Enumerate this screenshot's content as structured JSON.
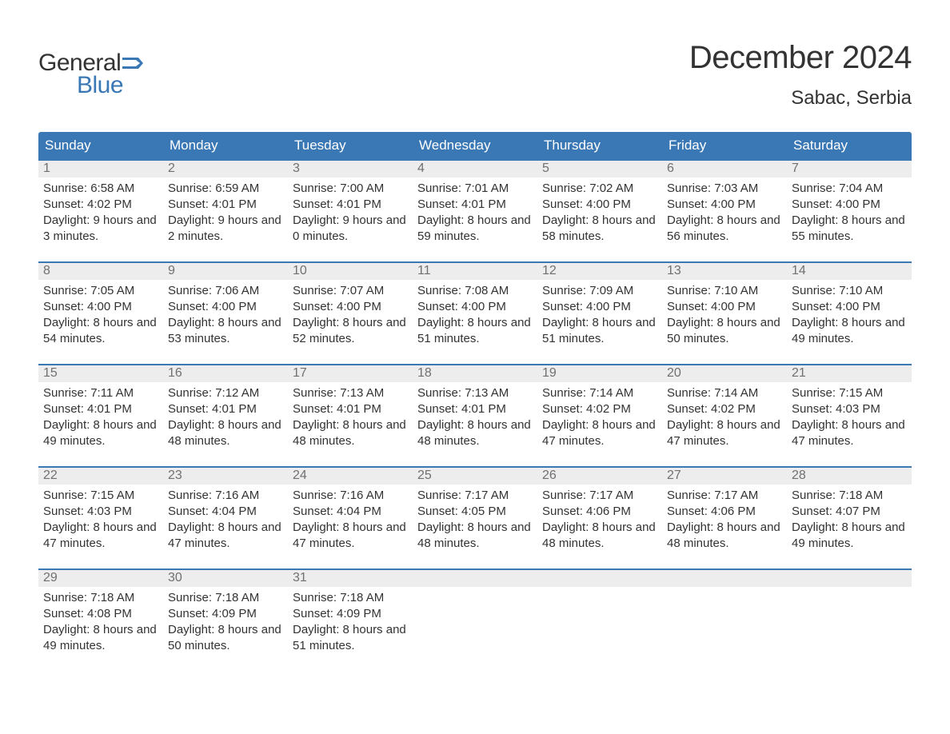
{
  "logo": {
    "line1": "General",
    "line2": "Blue"
  },
  "title": "December 2024",
  "location": "Sabac, Serbia",
  "colors": {
    "header_bg": "#3a78b5",
    "header_text": "#ffffff",
    "daynum_bg": "#ededed",
    "daynum_text": "#707070",
    "body_text": "#333333",
    "week_border": "#3a78b5",
    "background": "#ffffff",
    "logo_accent": "#3a78b5"
  },
  "typography": {
    "title_fontsize": 40,
    "location_fontsize": 24,
    "weekday_fontsize": 17,
    "daynum_fontsize": 16,
    "content_fontsize": 15,
    "logo_fontsize": 30,
    "font_family": "Arial"
  },
  "layout": {
    "columns": 7,
    "rows": 5,
    "cell_min_height": 122
  },
  "weekdays": [
    "Sunday",
    "Monday",
    "Tuesday",
    "Wednesday",
    "Thursday",
    "Friday",
    "Saturday"
  ],
  "weeks": [
    [
      {
        "num": "1",
        "sunrise": "Sunrise: 6:58 AM",
        "sunset": "Sunset: 4:02 PM",
        "daylight": "Daylight: 9 hours and 3 minutes."
      },
      {
        "num": "2",
        "sunrise": "Sunrise: 6:59 AM",
        "sunset": "Sunset: 4:01 PM",
        "daylight": "Daylight: 9 hours and 2 minutes."
      },
      {
        "num": "3",
        "sunrise": "Sunrise: 7:00 AM",
        "sunset": "Sunset: 4:01 PM",
        "daylight": "Daylight: 9 hours and 0 minutes."
      },
      {
        "num": "4",
        "sunrise": "Sunrise: 7:01 AM",
        "sunset": "Sunset: 4:01 PM",
        "daylight": "Daylight: 8 hours and 59 minutes."
      },
      {
        "num": "5",
        "sunrise": "Sunrise: 7:02 AM",
        "sunset": "Sunset: 4:00 PM",
        "daylight": "Daylight: 8 hours and 58 minutes."
      },
      {
        "num": "6",
        "sunrise": "Sunrise: 7:03 AM",
        "sunset": "Sunset: 4:00 PM",
        "daylight": "Daylight: 8 hours and 56 minutes."
      },
      {
        "num": "7",
        "sunrise": "Sunrise: 7:04 AM",
        "sunset": "Sunset: 4:00 PM",
        "daylight": "Daylight: 8 hours and 55 minutes."
      }
    ],
    [
      {
        "num": "8",
        "sunrise": "Sunrise: 7:05 AM",
        "sunset": "Sunset: 4:00 PM",
        "daylight": "Daylight: 8 hours and 54 minutes."
      },
      {
        "num": "9",
        "sunrise": "Sunrise: 7:06 AM",
        "sunset": "Sunset: 4:00 PM",
        "daylight": "Daylight: 8 hours and 53 minutes."
      },
      {
        "num": "10",
        "sunrise": "Sunrise: 7:07 AM",
        "sunset": "Sunset: 4:00 PM",
        "daylight": "Daylight: 8 hours and 52 minutes."
      },
      {
        "num": "11",
        "sunrise": "Sunrise: 7:08 AM",
        "sunset": "Sunset: 4:00 PM",
        "daylight": "Daylight: 8 hours and 51 minutes."
      },
      {
        "num": "12",
        "sunrise": "Sunrise: 7:09 AM",
        "sunset": "Sunset: 4:00 PM",
        "daylight": "Daylight: 8 hours and 51 minutes."
      },
      {
        "num": "13",
        "sunrise": "Sunrise: 7:10 AM",
        "sunset": "Sunset: 4:00 PM",
        "daylight": "Daylight: 8 hours and 50 minutes."
      },
      {
        "num": "14",
        "sunrise": "Sunrise: 7:10 AM",
        "sunset": "Sunset: 4:00 PM",
        "daylight": "Daylight: 8 hours and 49 minutes."
      }
    ],
    [
      {
        "num": "15",
        "sunrise": "Sunrise: 7:11 AM",
        "sunset": "Sunset: 4:01 PM",
        "daylight": "Daylight: 8 hours and 49 minutes."
      },
      {
        "num": "16",
        "sunrise": "Sunrise: 7:12 AM",
        "sunset": "Sunset: 4:01 PM",
        "daylight": "Daylight: 8 hours and 48 minutes."
      },
      {
        "num": "17",
        "sunrise": "Sunrise: 7:13 AM",
        "sunset": "Sunset: 4:01 PM",
        "daylight": "Daylight: 8 hours and 48 minutes."
      },
      {
        "num": "18",
        "sunrise": "Sunrise: 7:13 AM",
        "sunset": "Sunset: 4:01 PM",
        "daylight": "Daylight: 8 hours and 48 minutes."
      },
      {
        "num": "19",
        "sunrise": "Sunrise: 7:14 AM",
        "sunset": "Sunset: 4:02 PM",
        "daylight": "Daylight: 8 hours and 47 minutes."
      },
      {
        "num": "20",
        "sunrise": "Sunrise: 7:14 AM",
        "sunset": "Sunset: 4:02 PM",
        "daylight": "Daylight: 8 hours and 47 minutes."
      },
      {
        "num": "21",
        "sunrise": "Sunrise: 7:15 AM",
        "sunset": "Sunset: 4:03 PM",
        "daylight": "Daylight: 8 hours and 47 minutes."
      }
    ],
    [
      {
        "num": "22",
        "sunrise": "Sunrise: 7:15 AM",
        "sunset": "Sunset: 4:03 PM",
        "daylight": "Daylight: 8 hours and 47 minutes."
      },
      {
        "num": "23",
        "sunrise": "Sunrise: 7:16 AM",
        "sunset": "Sunset: 4:04 PM",
        "daylight": "Daylight: 8 hours and 47 minutes."
      },
      {
        "num": "24",
        "sunrise": "Sunrise: 7:16 AM",
        "sunset": "Sunset: 4:04 PM",
        "daylight": "Daylight: 8 hours and 47 minutes."
      },
      {
        "num": "25",
        "sunrise": "Sunrise: 7:17 AM",
        "sunset": "Sunset: 4:05 PM",
        "daylight": "Daylight: 8 hours and 48 minutes."
      },
      {
        "num": "26",
        "sunrise": "Sunrise: 7:17 AM",
        "sunset": "Sunset: 4:06 PM",
        "daylight": "Daylight: 8 hours and 48 minutes."
      },
      {
        "num": "27",
        "sunrise": "Sunrise: 7:17 AM",
        "sunset": "Sunset: 4:06 PM",
        "daylight": "Daylight: 8 hours and 48 minutes."
      },
      {
        "num": "28",
        "sunrise": "Sunrise: 7:18 AM",
        "sunset": "Sunset: 4:07 PM",
        "daylight": "Daylight: 8 hours and 49 minutes."
      }
    ],
    [
      {
        "num": "29",
        "sunrise": "Sunrise: 7:18 AM",
        "sunset": "Sunset: 4:08 PM",
        "daylight": "Daylight: 8 hours and 49 minutes."
      },
      {
        "num": "30",
        "sunrise": "Sunrise: 7:18 AM",
        "sunset": "Sunset: 4:09 PM",
        "daylight": "Daylight: 8 hours and 50 minutes."
      },
      {
        "num": "31",
        "sunrise": "Sunrise: 7:18 AM",
        "sunset": "Sunset: 4:09 PM",
        "daylight": "Daylight: 8 hours and 51 minutes."
      },
      {
        "num": "",
        "sunrise": "",
        "sunset": "",
        "daylight": ""
      },
      {
        "num": "",
        "sunrise": "",
        "sunset": "",
        "daylight": ""
      },
      {
        "num": "",
        "sunrise": "",
        "sunset": "",
        "daylight": ""
      },
      {
        "num": "",
        "sunrise": "",
        "sunset": "",
        "daylight": ""
      }
    ]
  ]
}
